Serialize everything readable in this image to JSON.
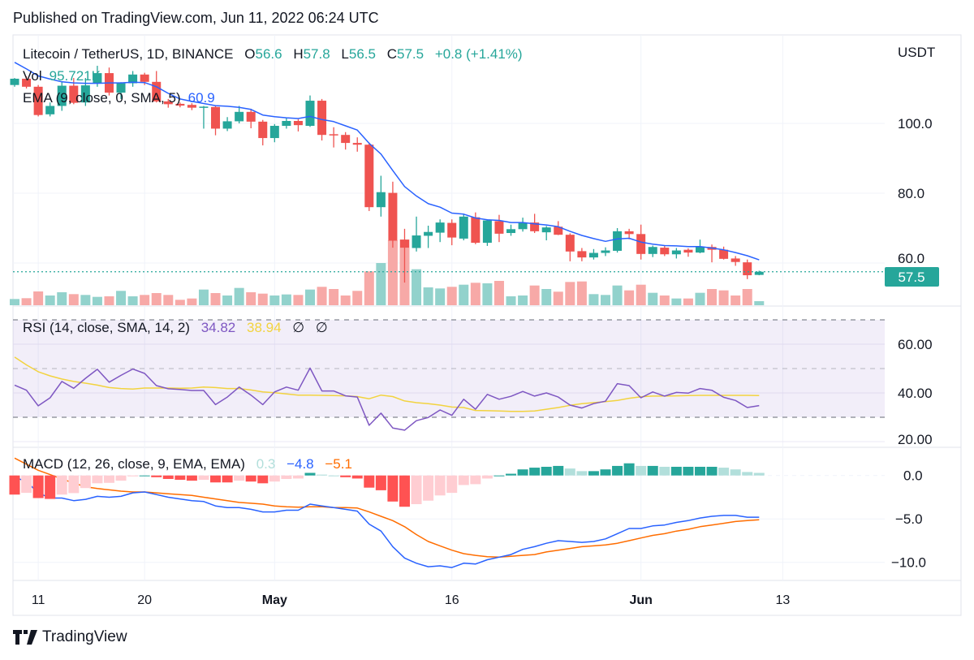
{
  "header": {
    "published": "Published on TradingView.com, Jun 11, 2022 06:24 UTC"
  },
  "legend": {
    "symbol": "Litecoin / TetherUS, 1D, BINANCE",
    "o_label": "O",
    "o": "56.6",
    "h_label": "H",
    "h": "57.8",
    "l_label": "L",
    "l": "56.5",
    "c_label": "C",
    "c": "57.5",
    "change": "+0.8 (+1.41%)",
    "vol_label": "Vol",
    "vol": "95.721K",
    "ema_label": "EMA (9, close, 0, SMA, 5)",
    "ema": "60.9"
  },
  "rsi_legend": {
    "label": "RSI (14, close, SMA, 14, 2)",
    "rsi": "34.82",
    "ma": "38.94",
    "extra1": "∅",
    "extra2": "∅"
  },
  "macd_legend": {
    "label": "MACD (12, 26, close, 9, EMA, EMA)",
    "hist": "0.3",
    "macd": "−4.8",
    "signal": "−5.1"
  },
  "axis": {
    "currency": "USDT",
    "price_ticks": [
      {
        "label": "100.0",
        "value": 100
      },
      {
        "label": "80.0",
        "value": 80
      },
      {
        "label": "60.0",
        "value": 60
      }
    ],
    "last_price": "57.5",
    "rsi_ticks": [
      {
        "label": "60.00",
        "value": 60
      },
      {
        "label": "40.00",
        "value": 40
      },
      {
        "label": "20.00",
        "value": 20
      }
    ],
    "macd_ticks": [
      {
        "label": "0.0",
        "value": 0
      },
      {
        "label": "−5.0",
        "value": -5
      },
      {
        "label": "−10.0",
        "value": -10
      }
    ],
    "x_ticks": [
      {
        "label": "11",
        "date": "2022-04-11",
        "bold": false
      },
      {
        "label": "20",
        "date": "2022-04-20",
        "bold": false
      },
      {
        "label": "May",
        "date": "2022-05-01",
        "bold": true
      },
      {
        "label": "16",
        "date": "2022-05-16",
        "bold": false
      },
      {
        "label": "Jun",
        "date": "2022-06-01",
        "bold": true
      },
      {
        "label": "13",
        "date": "2022-06-13",
        "bold": false
      }
    ]
  },
  "brand": "TradingView",
  "colors": {
    "up": "#26a69a",
    "down": "#ef5350",
    "vol_up": "#92d2cc",
    "vol_down": "#f7a9a7",
    "ema": "#2962ff",
    "rsi": "#7e57c2",
    "rsi_ma": "#f2d33f",
    "macd": "#2962ff",
    "signal": "#ff6d00",
    "hist_up_strong": "#26a69a",
    "hist_up_weak": "#b2dfdb",
    "hist_down_strong": "#ff5252",
    "hist_down_weak": "#ffcdd2"
  },
  "chart_data": {
    "type": "candlestick",
    "symbol": "Litecoin / TetherUS",
    "interval": "1D",
    "ylim": [
      50,
      118
    ],
    "grid": true,
    "dates": [
      "2022-04-09",
      "2022-04-10",
      "2022-04-11",
      "2022-04-12",
      "2022-04-13",
      "2022-04-14",
      "2022-04-15",
      "2022-04-16",
      "2022-04-17",
      "2022-04-18",
      "2022-04-19",
      "2022-04-20",
      "2022-04-21",
      "2022-04-22",
      "2022-04-23",
      "2022-04-24",
      "2022-04-25",
      "2022-04-26",
      "2022-04-27",
      "2022-04-28",
      "2022-04-29",
      "2022-04-30",
      "2022-05-01",
      "2022-05-02",
      "2022-05-03",
      "2022-05-04",
      "2022-05-05",
      "2022-05-06",
      "2022-05-07",
      "2022-05-08",
      "2022-05-09",
      "2022-05-10",
      "2022-05-11",
      "2022-05-12",
      "2022-05-13",
      "2022-05-14",
      "2022-05-15",
      "2022-05-16",
      "2022-05-17",
      "2022-05-18",
      "2022-05-19",
      "2022-05-20",
      "2022-05-21",
      "2022-05-22",
      "2022-05-23",
      "2022-05-24",
      "2022-05-25",
      "2022-05-26",
      "2022-05-27",
      "2022-05-28",
      "2022-05-29",
      "2022-05-30",
      "2022-05-31",
      "2022-06-01",
      "2022-06-02",
      "2022-06-03",
      "2022-06-04",
      "2022-06-05",
      "2022-06-06",
      "2022-06-07",
      "2022-06-08",
      "2022-06-09",
      "2022-06-10",
      "2022-06-11"
    ],
    "open": [
      111.0,
      112.8,
      110.5,
      102.6,
      105,
      110.8,
      106,
      111.4,
      114.4,
      108.8,
      111.5,
      114,
      111.9,
      106.3,
      105.6,
      105.3,
      104.6,
      104.7,
      98.5,
      100.6,
      103.3,
      100.5,
      95.8,
      99.3,
      100.7,
      99.3,
      106.5,
      96.9,
      96.7,
      94.4,
      93.9,
      76,
      80.1,
      66.7,
      64.3,
      67.8,
      68.7,
      71.5,
      67,
      73.1,
      65.8,
      72,
      68.6,
      69.7,
      71.6,
      68.8,
      70.4,
      68.1,
      63.4,
      61.6,
      62.9,
      63.5,
      69.1,
      68.3,
      62.6,
      64.4,
      62.5,
      63.8,
      63,
      64.6,
      63.8,
      61.3,
      60.2,
      56.6
    ],
    "high": [
      113,
      113.5,
      111,
      106,
      112,
      113,
      113,
      116.5,
      116,
      111.8,
      115,
      114.5,
      115,
      107,
      106,
      105.8,
      105,
      105,
      101.8,
      105,
      104.2,
      101,
      99.8,
      101.6,
      101.2,
      108,
      107,
      98.9,
      97.5,
      96,
      94.5,
      85,
      83.3,
      69.8,
      73.3,
      70.7,
      72.5,
      72.5,
      74,
      74.5,
      72.5,
      73.8,
      71,
      73,
      74.1,
      70.6,
      72,
      68.5,
      64.3,
      64,
      64.5,
      70,
      69.8,
      71,
      65,
      65,
      64.3,
      64.2,
      66.7,
      65.3,
      64.7,
      62,
      61,
      57.8
    ],
    "low": [
      110.5,
      110,
      102,
      102,
      103.6,
      105.5,
      105,
      110.5,
      108,
      107,
      110.5,
      111,
      106,
      104.5,
      104.6,
      103.8,
      98.5,
      96.6,
      97.8,
      100,
      98.6,
      93.7,
      94.6,
      98.5,
      97.7,
      99,
      95.1,
      93.1,
      92.5,
      91.9,
      74.9,
      73.3,
      64.4,
      54.4,
      63.3,
      64.3,
      66,
      65.1,
      66.5,
      65.4,
      64.9,
      66,
      67.8,
      69,
      68.6,
      66.5,
      68,
      60.5,
      60.5,
      61,
      62,
      63,
      66.8,
      61,
      61.7,
      62,
      61.3,
      61.8,
      62.8,
      60.2,
      61,
      59.2,
      55.4,
      56.5
    ],
    "close": [
      112.8,
      110.5,
      102.4,
      105,
      110.8,
      105.9,
      110.9,
      114.4,
      108.8,
      111.5,
      114,
      111.9,
      106.3,
      105.5,
      105.1,
      104.5,
      104.8,
      98.5,
      100.6,
      103.3,
      100.5,
      95.8,
      99.3,
      100.7,
      99.5,
      106.5,
      96.7,
      96.6,
      94.4,
      93.9,
      76,
      80.3,
      66.4,
      64.4,
      67.9,
      68.9,
      71.6,
      67.3,
      73.3,
      65.8,
      72.2,
      68.4,
      69.7,
      71.6,
      69.1,
      70.2,
      68.1,
      63.3,
      61.6,
      62.9,
      63.6,
      69.1,
      68.3,
      62.6,
      64.6,
      62.5,
      63.6,
      63,
      64.6,
      63.8,
      61.2,
      60.3,
      56.5,
      57.5
    ],
    "volume_k": [
      146,
      165,
      323,
      228,
      304,
      260,
      241,
      196,
      209,
      336,
      209,
      241,
      285,
      241,
      127,
      158,
      367,
      285,
      228,
      405,
      304,
      272,
      228,
      253,
      241,
      367,
      431,
      380,
      228,
      336,
      792,
      988,
      1520,
      1539,
      842,
      418,
      393,
      431,
      481,
      526,
      513,
      570,
      209,
      228,
      462,
      380,
      317,
      545,
      557,
      260,
      241,
      462,
      348,
      481,
      291,
      228,
      158,
      158,
      291,
      380,
      348,
      228,
      380,
      95.7
    ],
    "ema": [
      117.5,
      115.6,
      113.6,
      112.7,
      111.9,
      111.6,
      111.5,
      111.5,
      111.6,
      111.6,
      111.8,
      111.7,
      110.5,
      108.6,
      107,
      106.3,
      105.7,
      105.1,
      104.9,
      104.6,
      104,
      102.4,
      101.9,
      101.6,
      101.4,
      102,
      101.1,
      100.5,
      99.3,
      98.1,
      94.3,
      91.2,
      86.5,
      81.9,
      79.2,
      77,
      76,
      74.3,
      74,
      72.9,
      72.4,
      72.2,
      71.6,
      71.6,
      71.2,
      70.9,
      70.4,
      69.1,
      67.9,
      67,
      66.2,
      66.9,
      67.1,
      66,
      65.4,
      65,
      64.9,
      64.7,
      64.7,
      64.3,
      63.8,
      63,
      62.1,
      60.9
    ],
    "rsi": {
      "ylim": [
        20,
        70
      ],
      "band": [
        30,
        70
      ],
      "midline": 50,
      "rsi": [
        43.2,
        41.1,
        34.7,
        38,
        44.7,
        41.9,
        46,
        49.7,
        44.4,
        47.2,
        49.8,
        48,
        43,
        41.7,
        41.4,
        41,
        41,
        35.2,
        38.3,
        42.4,
        39.1,
        35.2,
        40.4,
        42.4,
        41.1,
        50.2,
        40.8,
        40.8,
        38.8,
        38.3,
        26.7,
        31.7,
        25.6,
        24.7,
        28.6,
        29.9,
        33,
        30.8,
        37.4,
        33.3,
        39.4,
        37.4,
        38.6,
        40.6,
        38.7,
        40,
        38.3,
        35,
        33.8,
        35.6,
        36.6,
        43.8,
        43,
        38,
        40.4,
        38.7,
        40.2,
        39.9,
        41.8,
        41.1,
        38.2,
        36.9,
        34,
        34.8
      ],
      "ma": [
        54.7,
        51.5,
        48.7,
        47,
        45.7,
        44.7,
        44,
        43.2,
        42.2,
        41.8,
        41.6,
        42,
        42,
        42,
        41.9,
        42,
        42.4,
        42.2,
        41.8,
        41.8,
        41.2,
        40.4,
        40.1,
        39.6,
        39.1,
        39.1,
        39,
        38.9,
        38.8,
        38.5,
        37.6,
        39.1,
        38.5,
        36.7,
        36,
        35.6,
        35,
        34.2,
        34,
        32.8,
        32.7,
        32.6,
        32.4,
        32.4,
        32.6,
        33.3,
        34,
        34.9,
        35.6,
        36,
        36.4,
        36.9,
        37.8,
        38.4,
        38.7,
        38.7,
        38.8,
        38.9,
        39,
        39,
        39,
        39,
        39,
        38.94
      ]
    },
    "macd": {
      "ylim": [
        -11,
        2.5
      ],
      "macd": [
        -0.2,
        -0.7,
        -2.0,
        -2.6,
        -2.6,
        -2.9,
        -2.75,
        -2.4,
        -2.5,
        -2.4,
        -2.0,
        -1.9,
        -2.2,
        -2.5,
        -2.7,
        -2.9,
        -3.0,
        -3.5,
        -3.7,
        -3.7,
        -3.9,
        -4.2,
        -4.2,
        -4.0,
        -4.0,
        -3.3,
        -3.5,
        -3.7,
        -3.9,
        -4.1,
        -5.6,
        -6.4,
        -8.2,
        -9.5,
        -10.1,
        -10.5,
        -10.4,
        -10.6,
        -10.1,
        -10.2,
        -9.7,
        -9.4,
        -9.1,
        -8.5,
        -8.2,
        -7.8,
        -7.5,
        -7.6,
        -7.7,
        -7.6,
        -7.3,
        -6.7,
        -6.1,
        -6.1,
        -5.8,
        -5.7,
        -5.4,
        -5.2,
        -4.9,
        -4.7,
        -4.6,
        -4.6,
        -4.8,
        -4.8
      ],
      "signal": [
        2.0,
        1.3,
        0.6,
        0.1,
        -0.4,
        -0.87,
        -1.3,
        -1.5,
        -1.65,
        -1.8,
        -1.9,
        -1.9,
        -2.0,
        -2.1,
        -2.2,
        -2.3,
        -2.5,
        -2.7,
        -2.9,
        -3.1,
        -3.2,
        -3.3,
        -3.5,
        -3.6,
        -3.65,
        -3.6,
        -3.6,
        -3.7,
        -3.7,
        -3.75,
        -4.2,
        -4.7,
        -5.2,
        -5.9,
        -6.8,
        -7.6,
        -8.1,
        -8.6,
        -9.0,
        -9.2,
        -9.35,
        -9.4,
        -9.3,
        -9.2,
        -9.1,
        -8.8,
        -8.6,
        -8.4,
        -8.2,
        -8.1,
        -8.0,
        -7.8,
        -7.5,
        -7.2,
        -6.9,
        -6.7,
        -6.4,
        -6.2,
        -5.9,
        -5.7,
        -5.5,
        -5.3,
        -5.2,
        -5.1
      ]
    }
  }
}
